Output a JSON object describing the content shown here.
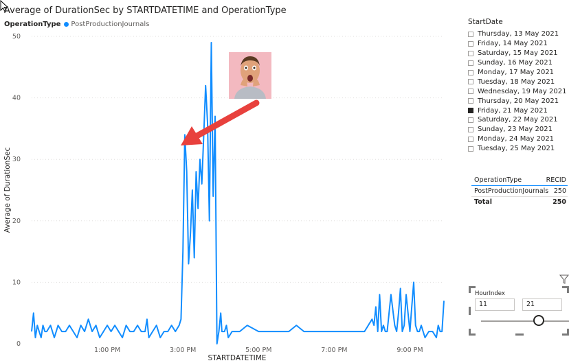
{
  "chart": {
    "title": "Average of DurationSec by STARTDATETIME and OperationType",
    "legend_title": "OperationType",
    "legend_item": "PostProductionJournals",
    "line_color": "#118DFF"
  },
  "chart_data": {
    "type": "line",
    "title": "Average of DurationSec by STARTDATETIME and OperationType",
    "xlabel": "STARTDATETIME",
    "ylabel": "Average of DurationSec",
    "ylim": [
      0,
      50
    ],
    "yticks": [
      0,
      10,
      20,
      30,
      40,
      50
    ],
    "xticks": [
      "1:00 PM",
      "3:00 PM",
      "5:00 PM",
      "7:00 PM",
      "9:00 PM"
    ],
    "xticks_hours": [
      13,
      15,
      17,
      19,
      21
    ],
    "xlim_hours": [
      11.0,
      21.9
    ],
    "grid": true,
    "legend": "top-left",
    "series": [
      {
        "name": "PostProductionJournals",
        "x": [
          11.0,
          11.05,
          11.1,
          11.15,
          11.2,
          11.25,
          11.3,
          11.35,
          11.4,
          11.5,
          11.6,
          11.65,
          11.7,
          11.8,
          11.9,
          12.0,
          12.1,
          12.2,
          12.3,
          12.4,
          12.5,
          12.6,
          12.7,
          12.8,
          12.9,
          13.0,
          13.1,
          13.2,
          13.3,
          13.4,
          13.5,
          13.6,
          13.7,
          13.8,
          13.9,
          14.0,
          14.05,
          14.1,
          14.2,
          14.3,
          14.4,
          14.5,
          14.6,
          14.7,
          14.8,
          14.9,
          14.95,
          15.0,
          15.05,
          15.1,
          15.15,
          15.2,
          15.25,
          15.3,
          15.35,
          15.4,
          15.45,
          15.5,
          15.55,
          15.6,
          15.65,
          15.7,
          15.75,
          15.8,
          15.85,
          15.9,
          15.95,
          16.0,
          16.03,
          16.06,
          16.1,
          16.15,
          16.2,
          16.3,
          16.4,
          16.5,
          16.7,
          17.0,
          17.2,
          17.5,
          17.8,
          18.0,
          18.2,
          18.5,
          18.8,
          19.0,
          19.2,
          19.5,
          19.8,
          20.0,
          20.05,
          20.1,
          20.15,
          20.2,
          20.25,
          20.3,
          20.35,
          20.4,
          20.5,
          20.6,
          20.65,
          20.7,
          20.75,
          20.8,
          20.85,
          20.9,
          21.0,
          21.05,
          21.1,
          21.15,
          21.2,
          21.25,
          21.3,
          21.35,
          21.4,
          21.5,
          21.6,
          21.7,
          21.75,
          21.8,
          21.85,
          21.9
        ],
        "y": [
          2,
          5,
          1,
          3,
          2,
          1,
          3,
          2,
          2,
          3,
          1,
          2,
          3,
          2,
          2,
          3,
          2,
          1,
          3,
          2,
          4,
          2,
          3,
          1,
          2,
          3,
          2,
          3,
          2,
          1,
          3,
          2,
          2,
          3,
          2,
          2,
          4,
          1,
          2,
          3,
          1,
          2,
          2,
          3,
          2,
          3,
          4,
          15,
          34,
          28,
          13,
          18,
          25,
          14,
          28,
          22,
          30,
          26,
          34,
          42,
          36,
          20,
          49,
          24,
          37,
          0,
          2,
          5,
          2,
          2,
          2,
          3,
          1,
          2,
          2,
          2,
          3,
          2,
          2,
          2,
          2,
          3,
          2,
          2,
          2,
          2,
          2,
          2,
          2,
          4,
          3,
          6,
          2,
          8,
          2,
          3,
          2,
          2,
          8,
          3,
          2,
          5,
          9,
          2,
          3,
          8,
          2,
          6,
          10,
          3,
          2,
          2,
          3,
          2,
          1,
          2,
          2,
          1,
          3,
          2,
          2,
          7
        ]
      }
    ]
  },
  "slicer": {
    "title": "StartDate",
    "items": [
      {
        "label": "Thursday, 13 May 2021",
        "checked": false
      },
      {
        "label": "Friday, 14 May 2021",
        "checked": false
      },
      {
        "label": "Saturday, 15 May 2021",
        "checked": false
      },
      {
        "label": "Sunday, 16 May 2021",
        "checked": false
      },
      {
        "label": "Monday, 17 May 2021",
        "checked": false
      },
      {
        "label": "Tuesday, 18 May 2021",
        "checked": false
      },
      {
        "label": "Wednesday, 19 May 2021",
        "checked": false
      },
      {
        "label": "Thursday, 20 May 2021",
        "checked": false
      },
      {
        "label": "Friday, 21 May 2021",
        "checked": true
      },
      {
        "label": "Saturday, 22 May 2021",
        "checked": false
      },
      {
        "label": "Sunday, 23 May 2021",
        "checked": false
      },
      {
        "label": "Monday, 24 May 2021",
        "checked": false
      },
      {
        "label": "Tuesday, 25 May 2021",
        "checked": false
      }
    ]
  },
  "table": {
    "col1": "OperationType",
    "col2": "RECID",
    "row_label": "PostProductionJournals",
    "row_value": "250",
    "total_label": "Total",
    "total_value": "250"
  },
  "hour_slicer": {
    "title": "HourIndex",
    "min_value": "11",
    "max_value": "21"
  },
  "annotation": {
    "arrow_color": "#E8413D",
    "photo_bg": "#F3B9C0"
  }
}
